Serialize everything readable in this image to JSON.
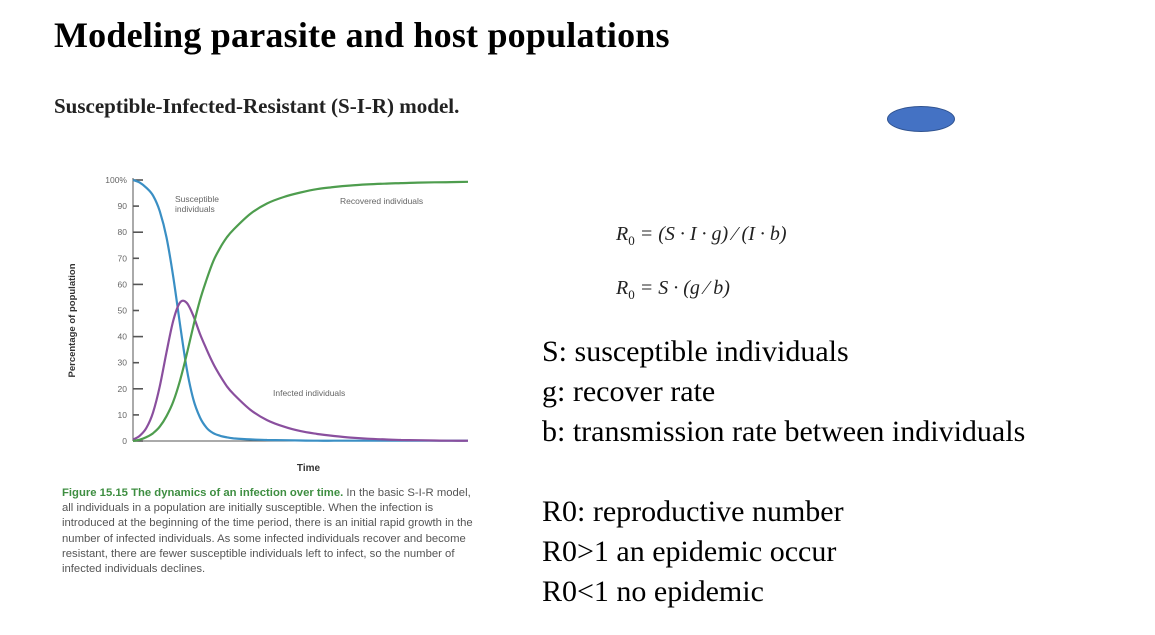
{
  "slide": {
    "title": "Modeling parasite and host populations",
    "subtitle": "Susceptible-Infected-Resistant (S-I-R) model."
  },
  "formulas": {
    "r0_full": {
      "lhs": "R",
      "sub": "0",
      "rhs": " = (S · I · g) ⁄ (I · b)"
    },
    "r0_simplified": {
      "lhs": "R",
      "sub": "0",
      "rhs": " = S · (g ⁄ b)"
    }
  },
  "definitions": [
    "S: susceptible individuals",
    "g: recover rate",
    "b: transmission rate between individuals"
  ],
  "r0_notes": [
    "R0: reproductive number",
    "R0>1 an epidemic occur",
    "R0<1 no epidemic"
  ],
  "caption": {
    "figure_label": "Figure 15.15",
    "figure_title": "The dynamics of an infection over time.",
    "body": "In the basic S-I-R model, all individuals in a population are initially susceptible. When the infection is introduced at the beginning of the time period, there is an initial rapid growth in the number of infected individuals. As some infected individuals recover and become resistant, there are fewer susceptible individuals left to infect, so the number of infected individuals declines."
  },
  "chart_data": {
    "type": "line",
    "xlabel": "Time",
    "ylabel": "Percentage of population",
    "ylim": [
      0,
      100
    ],
    "yticks": [
      "0",
      "10",
      "20",
      "30",
      "40",
      "50",
      "60",
      "70",
      "80",
      "90",
      "100%"
    ],
    "x": [
      0,
      2,
      4,
      6,
      8,
      10,
      12,
      14,
      16,
      18,
      20,
      22,
      24,
      26,
      28,
      30,
      35,
      40,
      45,
      50,
      55,
      60,
      65,
      70,
      75,
      80,
      85,
      90,
      95,
      100
    ],
    "series": [
      {
        "name": "Susceptible individuals",
        "color": "#3a8fc4",
        "values": [
          100,
          99,
          97,
          94,
          88,
          78,
          63,
          45,
          28,
          16,
          9,
          5,
          3,
          2,
          1.4,
          1,
          0.6,
          0.4,
          0.3,
          0.2,
          0.1,
          0.1,
          0.1,
          0.1,
          0.1,
          0.1,
          0.1,
          0.1,
          0.1,
          0.1
        ]
      },
      {
        "name": "Infected individuals",
        "color": "#8a4f9e",
        "values": [
          0.5,
          2,
          5,
          11,
          21,
          34,
          46,
          53,
          53,
          48,
          41,
          35,
          29.5,
          25,
          21,
          18,
          12,
          8,
          5.5,
          3.8,
          2.7,
          1.9,
          1.3,
          0.9,
          0.6,
          0.4,
          0.3,
          0.2,
          0.1,
          0.1
        ]
      },
      {
        "name": "Recovered individuals",
        "color": "#4e9d4e",
        "values": [
          0,
          0.5,
          1.5,
          3,
          5.5,
          9.5,
          15,
          23,
          33,
          44,
          54,
          62,
          69,
          74,
          78,
          81,
          87,
          91,
          93.5,
          95.2,
          96.5,
          97.3,
          97.9,
          98.3,
          98.6,
          98.8,
          99,
          99.1,
          99.2,
          99.3
        ]
      }
    ]
  }
}
